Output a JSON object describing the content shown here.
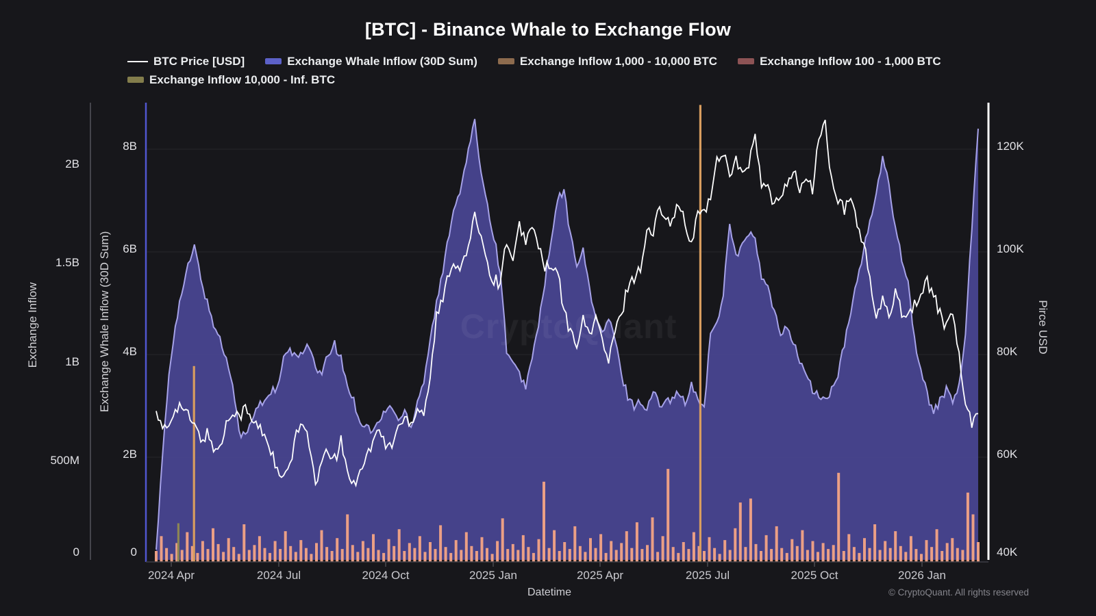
{
  "title": "[BTC] - Binance Whale to Exchange Flow",
  "watermark": "CryptoQuant",
  "copyright": "© CryptoQuant. All rights reserved",
  "legend": [
    {
      "label": "BTC Price [USD]",
      "color": "#ffffff",
      "swatch": "line"
    },
    {
      "label": "Exchange Whale Inflow (30D Sum)",
      "color": "#5c61c8",
      "swatch": "rect"
    },
    {
      "label": "Exchange Inflow 1,000 - 10,000 BTC",
      "color": "#8d6b4e",
      "swatch": "rect"
    },
    {
      "label": "Exchange Inflow 100 - 1,000 BTC",
      "color": "#8d5355",
      "swatch": "rect"
    },
    {
      "label": "Exchange Inflow 10,000 - Inf. BTC",
      "color": "#837d4c",
      "swatch": "rect"
    }
  ],
  "axes": {
    "left_outer": {
      "title": "Exchange Inflow",
      "ticks": [
        "2B",
        "1.5B",
        "1B",
        "500M",
        "0"
      ]
    },
    "left_inner": {
      "title": "Exchange Whale Inflow (30D Sum)",
      "ticks": [
        "8B",
        "6B",
        "4B",
        "2B",
        "0"
      ]
    },
    "right": {
      "title": "Pirce USD",
      "ticks": [
        "120K",
        "100K",
        "80K",
        "60K",
        "40K"
      ]
    },
    "x": {
      "title": "Datetime",
      "ticks": [
        "2024 Apr",
        "2024 Jul",
        "2024 Oct",
        "2025 Jan",
        "2025 Apr",
        "2025 Jul",
        "2025 Oct",
        "2026 Jan"
      ]
    }
  },
  "chart_data": {
    "type": "mixed",
    "x_range_note": "data spans mid-March 2024 to mid-February 2026, sampled ~weekly",
    "x_tick_labels": [
      "2024 Apr",
      "2024 Jul",
      "2024 Oct",
      "2025 Jan",
      "2025 Apr",
      "2025 Jul",
      "2025 Oct",
      "2026 Jan"
    ],
    "price_axis": {
      "label": "Pirce USD",
      "units": "USD thousands",
      "ylim": [
        40,
        129
      ]
    },
    "whale_axis": {
      "label": "Exchange Whale Inflow (30D Sum)",
      "units": "USD billions",
      "ylim": [
        0,
        8.9
      ]
    },
    "inflow_axis": {
      "label": "Exchange Inflow",
      "units": "USD millions",
      "ylim": [
        0,
        2310
      ]
    },
    "series": [
      {
        "name": "BTC Price [USD]",
        "type": "line",
        "axis": "price",
        "color": "#ffffff",
        "values": [
          69,
          65,
          66,
          70,
          70,
          68,
          66,
          63.5,
          64.5,
          62,
          61.5,
          66.5,
          69.5,
          68,
          69.5,
          67,
          66,
          64.5,
          61.5,
          57,
          55.5,
          58.5,
          64,
          67.5,
          63,
          54,
          59,
          61,
          59.5,
          63,
          57.5,
          54.5,
          58,
          60,
          63,
          65.5,
          62,
          62.5,
          66,
          67.5,
          67,
          69.5,
          69,
          75.5,
          87.5,
          90.5,
          96.5,
          98,
          97,
          101,
          106.5,
          104,
          97.5,
          94.5,
          94,
          102.5,
          97.5,
          105,
          102.5,
          104.5,
          101.5,
          97,
          96.5,
          96,
          88.5,
          84,
          82.5,
          86.5,
          84,
          87.5,
          82.5,
          78.5,
          84.5,
          87.5,
          93.5,
          95,
          97,
          104,
          103.5,
          109,
          107.5,
          105.5,
          110,
          105,
          101,
          107.5,
          108.5,
          110,
          118,
          119.5,
          115.5,
          118,
          114.5,
          117.5,
          122,
          113,
          112.5,
          108.5,
          111,
          114,
          115.5,
          112.5,
          114,
          112,
          122.5,
          125,
          113.5,
          110,
          108,
          110.5,
          106,
          101.5,
          95,
          86.5,
          90.5,
          87,
          93,
          88.5,
          87.5,
          90,
          91.5,
          94,
          92,
          88,
          85,
          88.5,
          80,
          69,
          67,
          68.5
        ]
      },
      {
        "name": "Exchange Whale Inflow (30D Sum)",
        "type": "area",
        "axis": "whale",
        "stroke": "#a6a2e8",
        "fill": "#4a4794",
        "values": [
          0.2,
          2.0,
          3.6,
          4.6,
          5.2,
          5.7,
          6.1,
          5.5,
          5.0,
          4.6,
          4.3,
          3.9,
          3.5,
          2.5,
          2.4,
          2.7,
          3.0,
          3.1,
          3.3,
          3.3,
          3.9,
          4.1,
          3.9,
          4.1,
          4.2,
          3.7,
          3.6,
          4.0,
          4.2,
          3.9,
          3.4,
          3.1,
          2.7,
          2.6,
          2.5,
          2.7,
          2.9,
          3.0,
          2.7,
          2.9,
          2.6,
          3.1,
          3.5,
          4.3,
          5.0,
          5.6,
          6.4,
          7.0,
          7.3,
          8.0,
          8.5,
          7.6,
          6.9,
          6.3,
          5.6,
          4.1,
          3.8,
          3.6,
          3.4,
          3.9,
          4.6,
          5.4,
          6.2,
          7.0,
          7.2,
          6.3,
          5.8,
          6.0,
          5.3,
          4.7,
          4.4,
          4.7,
          4.3,
          3.6,
          3.2,
          3.0,
          3.1,
          2.9,
          3.3,
          3.0,
          3.2,
          3.1,
          3.3,
          3.0,
          3.4,
          3.1,
          3.0,
          4.4,
          4.6,
          5.2,
          6.6,
          5.9,
          6.1,
          6.4,
          6.2,
          5.5,
          5.3,
          4.8,
          4.4,
          4.6,
          4.2,
          3.9,
          3.6,
          3.3,
          3.2,
          3.1,
          3.3,
          3.6,
          4.2,
          4.8,
          5.5,
          6.0,
          6.6,
          7.1,
          7.8,
          7.3,
          6.5,
          5.9,
          5.4,
          4.3,
          3.7,
          3.2,
          2.9,
          3.1,
          3.3,
          3.1,
          3.4,
          4.3,
          6.5,
          8.4
        ]
      },
      {
        "name": "Exchange Inflow 100 - 1,000 BTC",
        "type": "bar",
        "axis": "inflow",
        "color": "#eb9f85",
        "values_M": [
          45,
          120,
          60,
          30,
          85,
          50,
          140,
          70,
          35,
          95,
          55,
          160,
          80,
          40,
          110,
          65,
          30,
          180,
          50,
          75,
          120,
          60,
          35,
          95,
          55,
          145,
          70,
          40,
          100,
          60,
          30,
          85,
          150,
          65,
          45,
          110,
          55,
          230,
          75,
          40,
          95,
          60,
          130,
          50,
          35,
          105,
          70,
          155,
          45,
          85,
          60,
          120,
          40,
          90,
          55,
          175,
          65,
          35,
          100,
          50,
          140,
          70,
          45,
          115,
          60,
          30,
          95,
          210,
          55,
          80,
          50,
          125,
          65,
          35,
          105,
          395,
          60,
          150,
          45,
          90,
          55,
          170,
          70,
          40,
          110,
          60,
          130,
          35,
          95,
          50,
          85,
          145,
          60,
          190,
          55,
          75,
          215,
          40,
          120,
          460,
          65,
          35,
          90,
          55,
          140,
          70,
          45,
          115,
          60,
          30,
          100,
          50,
          160,
          290,
          65,
          310,
          80,
          45,
          125,
          55,
          170,
          60,
          35,
          105,
          70,
          150,
          50,
          95,
          40,
          85,
          55,
          75,
          440,
          45,
          130,
          65,
          35,
          110,
          60,
          180,
          50,
          95,
          60,
          145,
          70,
          40,
          120,
          55,
          30,
          100,
          65,
          155,
          45,
          85,
          110,
          60,
          50,
          340,
          230,
          90
        ]
      },
      {
        "name": "Exchange Inflow 1,000 - 10,000 BTC",
        "type": "bar-spike",
        "axis": "inflow",
        "color": "#d89d5f",
        "points": [
          {
            "x_frac": 0.046,
            "value_M": 980
          },
          {
            "x_frac": 0.662,
            "value_M": 2300
          }
        ]
      },
      {
        "name": "Exchange Inflow 10,000 - Inf. BTC",
        "type": "bar-spike",
        "axis": "inflow",
        "color": "#8c8554",
        "points": [
          {
            "x_frac": 0.027,
            "value_M": 185
          }
        ]
      }
    ],
    "grid": "faint horizontal lines at whale-axis tick levels",
    "legend_position": "top-left, two rows"
  }
}
